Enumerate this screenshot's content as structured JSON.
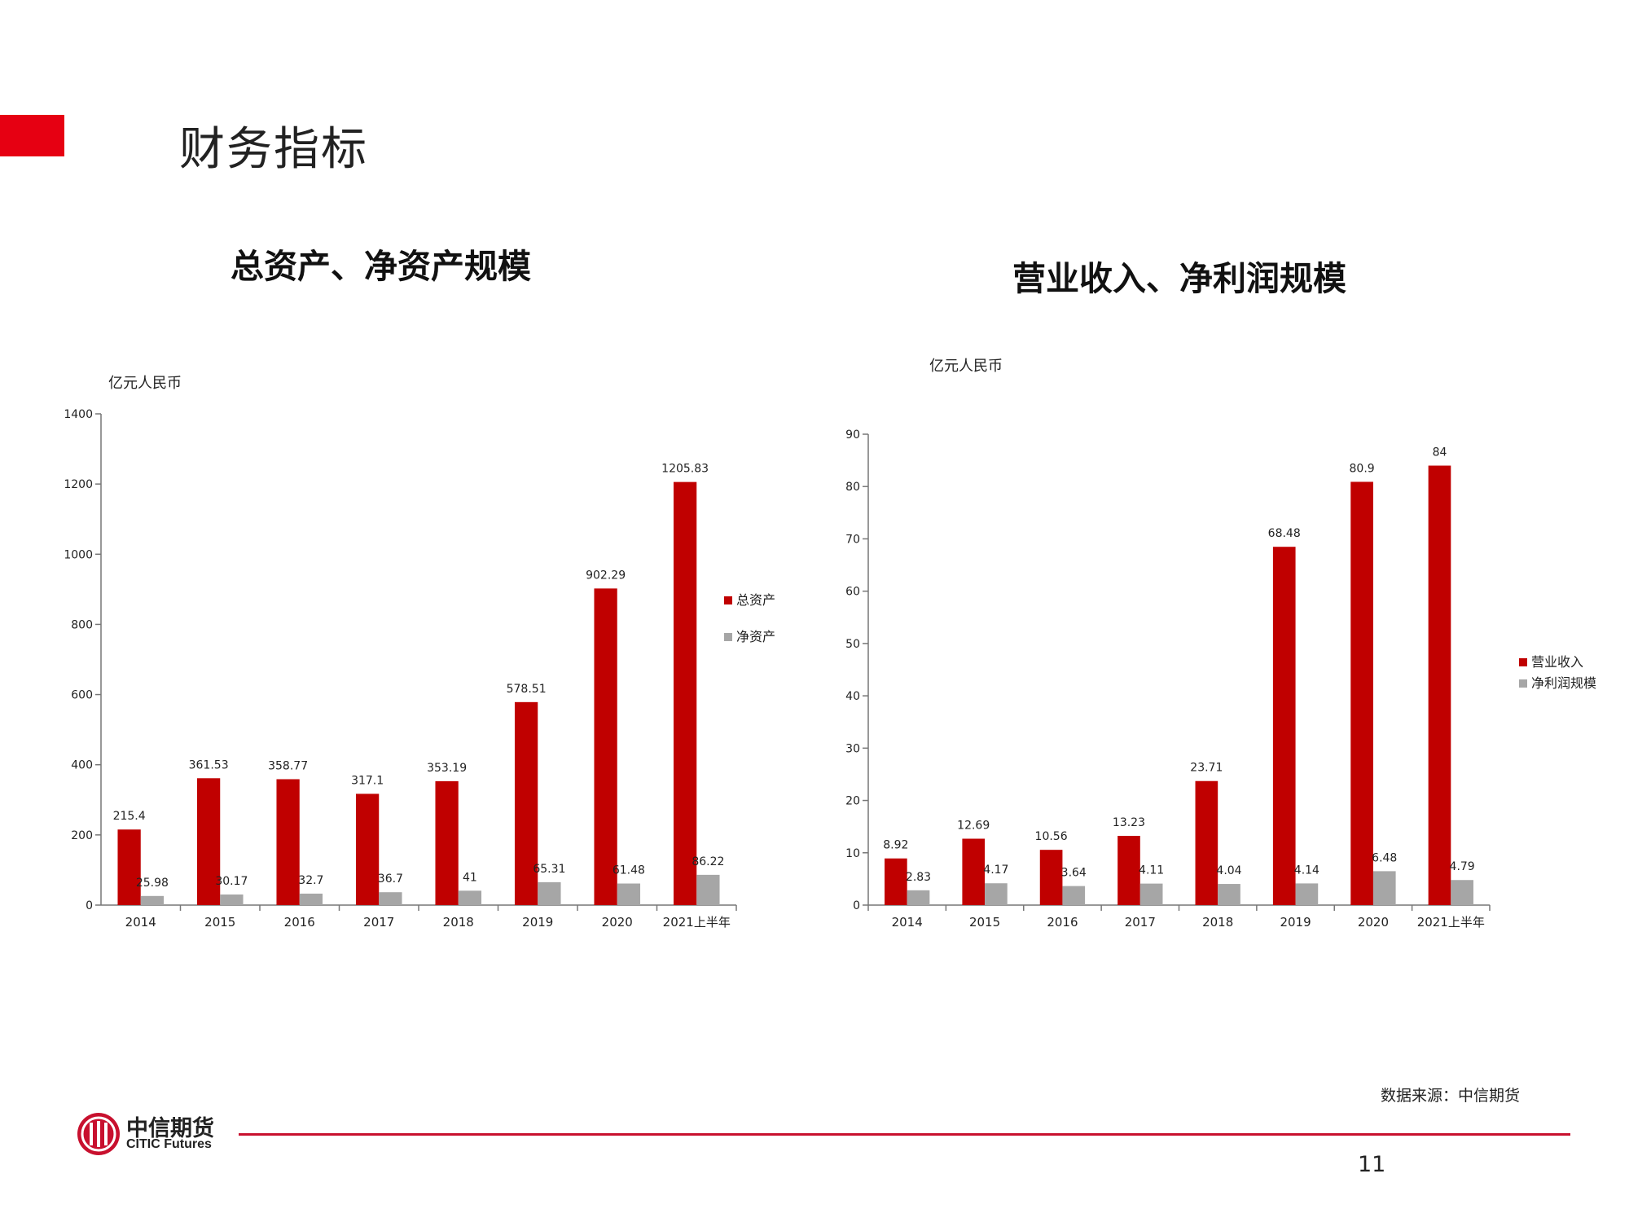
{
  "slide": {
    "title": "财务指标",
    "source_note": "数据来源：中信期货",
    "page_number": "11",
    "logo": {
      "cn": "中信期货",
      "en": "CITIC Futures"
    }
  },
  "colors": {
    "accent": "#e60012",
    "bar_red": "#c00000",
    "bar_gray": "#a6a6a6"
  },
  "chart_data": [
    {
      "type": "bar",
      "title": "总资产、净资产规模",
      "ylabel": "亿元人民币",
      "categories": [
        "2014",
        "2015",
        "2016",
        "2017",
        "2018",
        "2019",
        "2020",
        "2021上半年"
      ],
      "ylim": [
        0,
        1400
      ],
      "yticks": [
        0,
        200,
        400,
        600,
        800,
        1000,
        1200,
        1400
      ],
      "legend_position": "right",
      "series": [
        {
          "name": "总资产",
          "color": "#c00000",
          "values": [
            215.4,
            361.53,
            358.77,
            317.1,
            353.19,
            578.51,
            902.29,
            1205.83
          ],
          "labels": [
            "215.4",
            "361.53",
            "358.77",
            "317.1",
            "353.19",
            "578.51",
            "902.29",
            "1205.83"
          ]
        },
        {
          "name": "净资产",
          "color": "#a6a6a6",
          "values": [
            25.98,
            30.17,
            32.7,
            36.7,
            41,
            65.31,
            61.48,
            86.22
          ],
          "labels": [
            "25.98",
            "30.17",
            "32.7",
            "36.7",
            "41",
            "65.31",
            "61.48",
            "86.22"
          ]
        }
      ]
    },
    {
      "type": "bar",
      "title": "营业收入、净利润规模",
      "ylabel": "亿元人民币",
      "categories": [
        "2014",
        "2015",
        "2016",
        "2017",
        "2018",
        "2019",
        "2020",
        "2021上半年"
      ],
      "ylim": [
        0,
        90
      ],
      "yticks": [
        0,
        10,
        20,
        30,
        40,
        50,
        60,
        70,
        80,
        90
      ],
      "legend_position": "right",
      "series": [
        {
          "name": "营业收入",
          "color": "#c00000",
          "values": [
            8.92,
            12.69,
            10.56,
            13.23,
            23.71,
            68.48,
            80.9,
            84
          ],
          "labels": [
            "8.92",
            "12.69",
            "10.56",
            "13.23",
            "23.71",
            "68.48",
            "80.9",
            "84"
          ]
        },
        {
          "name": "净利润规模",
          "color": "#a6a6a6",
          "values": [
            2.83,
            4.17,
            3.64,
            4.11,
            4.04,
            4.14,
            6.48,
            4.79
          ],
          "labels": [
            "2.83",
            "4.17",
            "3.64",
            "4.11",
            "4.04",
            "4.14",
            "6.48",
            "4.79"
          ]
        }
      ]
    }
  ]
}
